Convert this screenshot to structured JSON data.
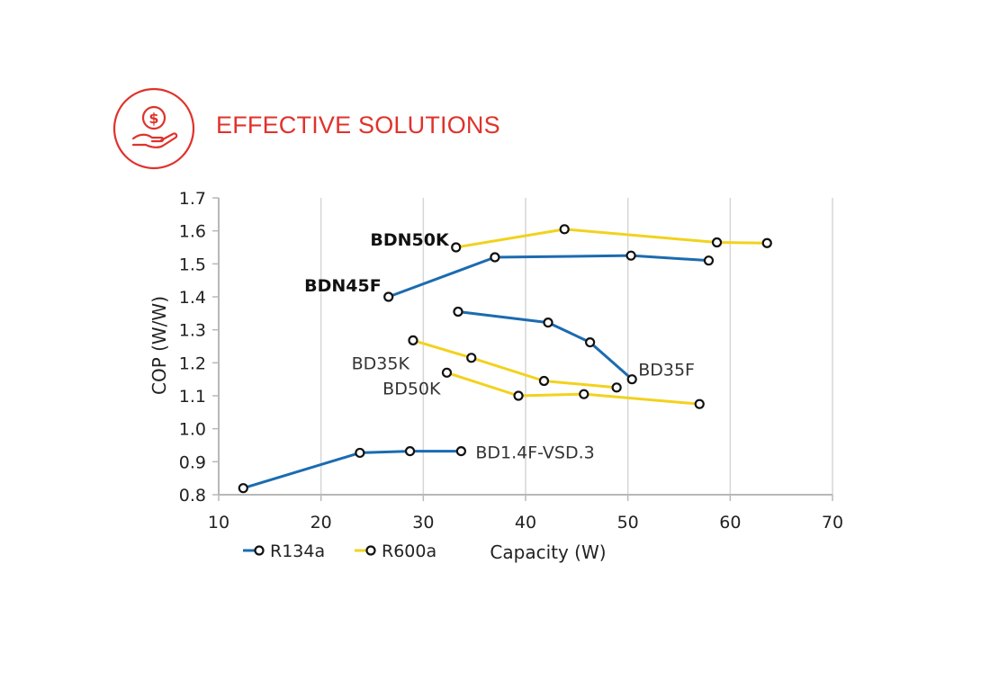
{
  "header": {
    "title": "EFFECTIVE SOLUTIONS",
    "accent_color": "#e0322b",
    "icon": "dollar-coin-in-hand-icon"
  },
  "chart_data": {
    "type": "line",
    "xlabel": "Capacity (W)",
    "ylabel": "COP (W/W)",
    "xlim": [
      10,
      70
    ],
    "ylim": [
      0.8,
      1.7
    ],
    "xticks": [
      "10",
      "20",
      "30",
      "40",
      "50",
      "60",
      "70"
    ],
    "yticks": [
      "0.8",
      "0.9",
      "1.0",
      "1.1",
      "1.2",
      "1.3",
      "1.4",
      "1.5",
      "1.6",
      "1.7"
    ],
    "grid": "vertical",
    "legend": {
      "position": "bottom-left",
      "entries": [
        {
          "label": "R134a",
          "color": "#1b6bb0"
        },
        {
          "label": "R600a",
          "color": "#f2d21d"
        }
      ]
    },
    "series": [
      {
        "name": "BDN50K",
        "refrigerant": "R600a",
        "color": "#f2d21d",
        "bold": true,
        "points": [
          [
            33.2,
            1.55
          ],
          [
            43.8,
            1.605
          ],
          [
            58.7,
            1.565
          ],
          [
            63.6,
            1.563
          ]
        ]
      },
      {
        "name": "BDN45F",
        "refrigerant": "R134a",
        "color": "#1b6bb0",
        "bold": true,
        "points": [
          [
            26.6,
            1.4
          ],
          [
            37.0,
            1.52
          ],
          [
            50.3,
            1.525
          ],
          [
            57.9,
            1.51
          ]
        ]
      },
      {
        "name": "BD35F",
        "refrigerant": "R134a",
        "color": "#1b6bb0",
        "bold": false,
        "points": [
          [
            33.4,
            1.355
          ],
          [
            42.2,
            1.322
          ],
          [
            46.3,
            1.262
          ],
          [
            50.4,
            1.15
          ]
        ]
      },
      {
        "name": "BD35K",
        "refrigerant": "R600a",
        "color": "#f2d21d",
        "bold": false,
        "points": [
          [
            29.0,
            1.268
          ],
          [
            34.7,
            1.215
          ],
          [
            41.8,
            1.145
          ],
          [
            48.9,
            1.125
          ]
        ]
      },
      {
        "name": "BD50K",
        "refrigerant": "R600a",
        "color": "#f2d21d",
        "bold": false,
        "points": [
          [
            32.3,
            1.17
          ],
          [
            39.3,
            1.1
          ],
          [
            45.7,
            1.105
          ],
          [
            57.0,
            1.075
          ]
        ]
      },
      {
        "name": "BD1.4F-VSD.3",
        "refrigerant": "R134a",
        "color": "#1b6bb0",
        "bold": false,
        "points": [
          [
            12.4,
            0.82
          ],
          [
            23.8,
            0.927
          ],
          [
            28.7,
            0.932
          ],
          [
            33.7,
            0.932
          ]
        ]
      }
    ]
  }
}
